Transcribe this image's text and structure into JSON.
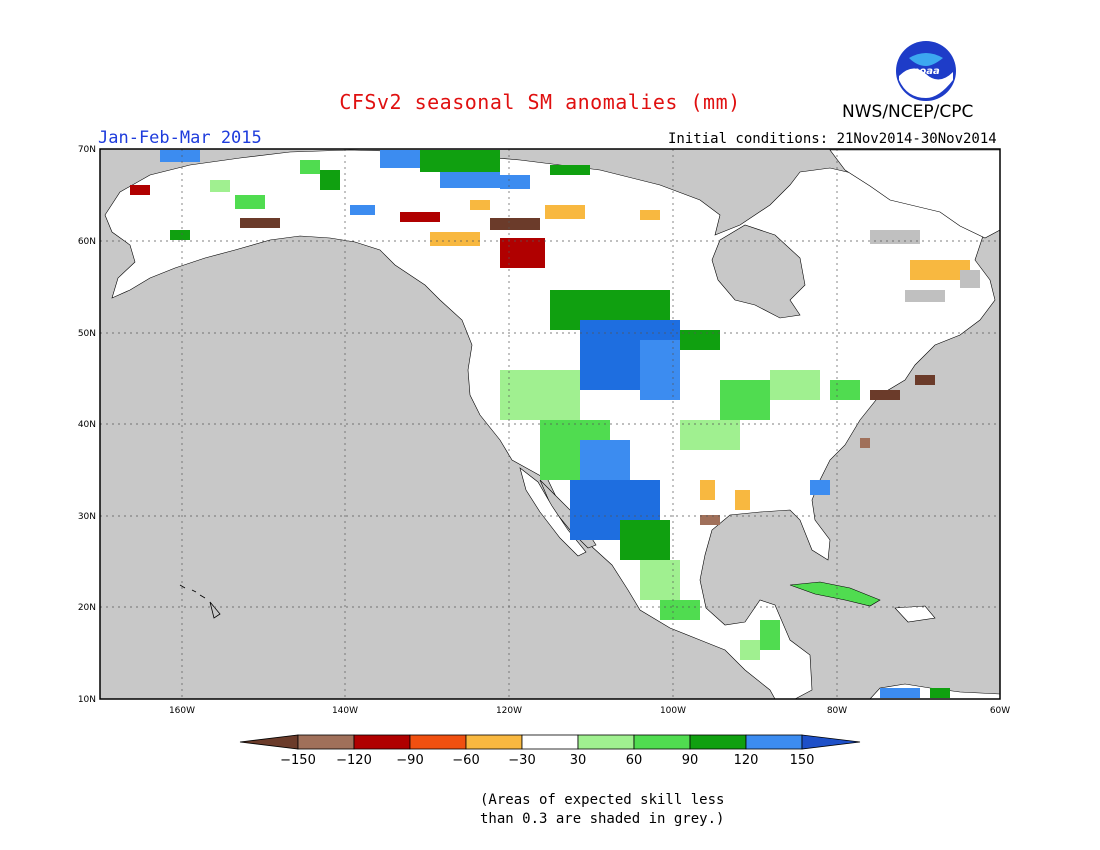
{
  "header": {
    "title": "CFSv2 seasonal SM anomalies (mm)",
    "org": "NWS/NCEP/CPC",
    "period": "Jan-Feb-Mar 2015",
    "initial_conditions": "Initial conditions: 21Nov2014-30Nov2014",
    "logo_text": "noaa"
  },
  "map": {
    "lat_labels": [
      "70N",
      "60N",
      "50N",
      "40N",
      "30N",
      "20N",
      "10N"
    ],
    "lon_labels": [
      "160W",
      "140W",
      "120W",
      "100W",
      "80W",
      "60W"
    ],
    "colors": {
      "ocean": "#c8c8c8",
      "land": "#ffffff",
      "grey_skill": "#c0c0c0",
      "border": "#000000"
    }
  },
  "legend": {
    "labels": [
      "-150",
      "-120",
      "-90",
      "-60",
      "-30",
      "30",
      "60",
      "90",
      "120",
      "150"
    ],
    "colors": [
      "#6b3b2a",
      "#a0705a",
      "#b00000",
      "#f05010",
      "#f8b840",
      "#ffffff",
      "#a0f090",
      "#50dc50",
      "#10a010",
      "#3c8cf0",
      "#1e50c8"
    ]
  },
  "notes": {
    "line1": "(Areas of expected skill less",
    "line2": "than 0.3 are shaded in grey.)"
  }
}
